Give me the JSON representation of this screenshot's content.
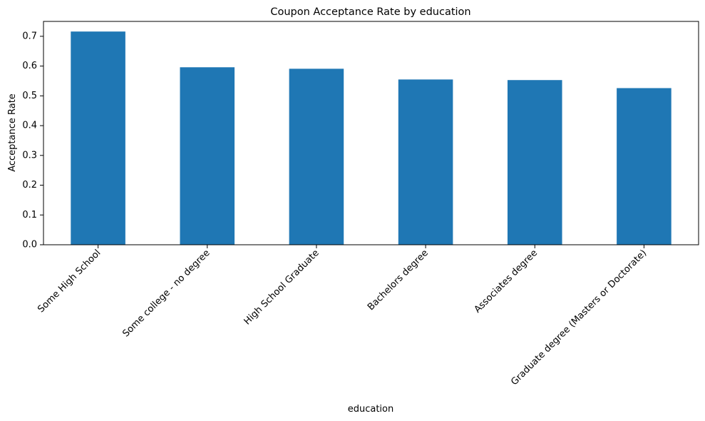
{
  "chart_data": {
    "type": "bar",
    "title": "Coupon Acceptance Rate by education",
    "xlabel": "education",
    "ylabel": "Acceptance Rate",
    "categories": [
      "Some High School",
      "Some college - no degree",
      "High School Graduate",
      "Bachelors degree",
      "Associates degree",
      "Graduate degree (Masters or Doctorate)"
    ],
    "values": [
      0.716,
      0.596,
      0.591,
      0.555,
      0.553,
      0.526
    ],
    "ylim": [
      0,
      0.75
    ],
    "yticks": [
      "0.0",
      "0.1",
      "0.2",
      "0.3",
      "0.4",
      "0.5",
      "0.6",
      "0.7"
    ],
    "ytick_values": [
      0,
      0.1,
      0.2,
      0.3,
      0.4,
      0.5,
      0.6,
      0.7
    ],
    "bar_color": "#1f77b4",
    "grid": false,
    "legend": false
  }
}
